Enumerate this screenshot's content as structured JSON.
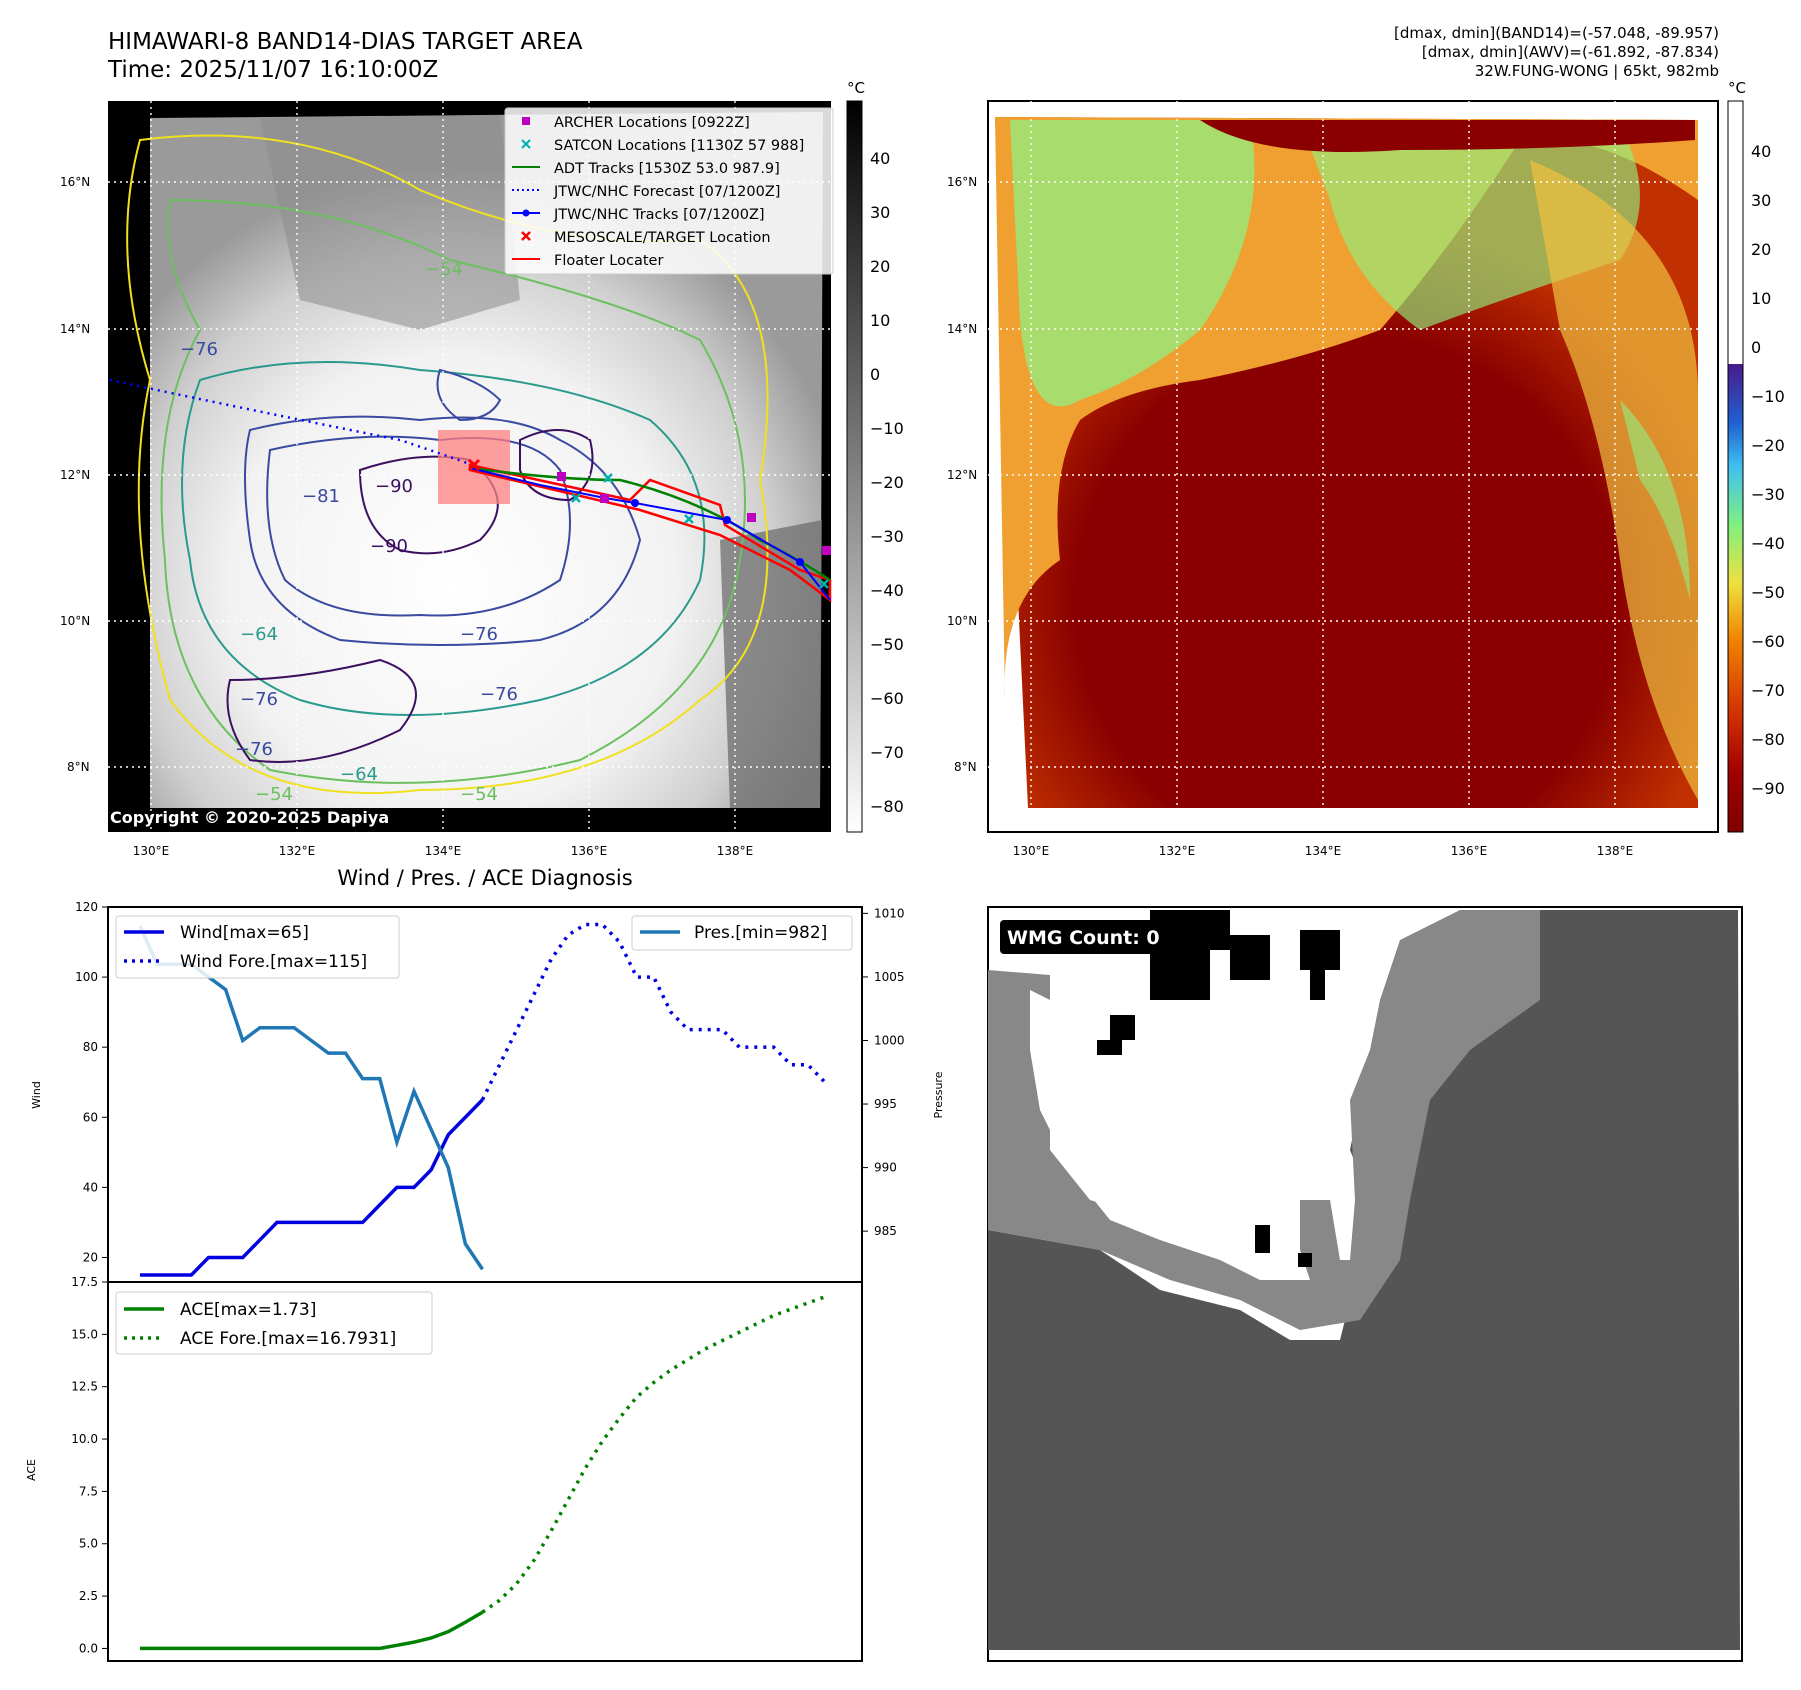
{
  "header": {
    "title": "HIMAWARI-8 BAND14-DIAS TARGET AREA",
    "time": "Time: 2025/11/07 16:10:00Z",
    "dmax_band14": "[dmax, dmin](BAND14)=(-57.048, -89.957)",
    "dmax_awv": "[dmax, dmin](AWV)=(-61.892, -87.834)",
    "storm": "32W.FUNG-WONG | 65kt, 982mb"
  },
  "map_axes": {
    "lat_labels": [
      "16°N",
      "14°N",
      "12°N",
      "10°N",
      "8°N"
    ],
    "lon_labels": [
      "130°E",
      "132°E",
      "134°E",
      "136°E",
      "138°E"
    ]
  },
  "ir_panel": {
    "colorbar_unit": "°C",
    "colorbar_ticks": [
      "40",
      "30",
      "20",
      "10",
      "0",
      "−10",
      "−20",
      "−30",
      "−40",
      "−50",
      "−60",
      "−70",
      "−80"
    ],
    "contour_labels": [
      "−90",
      "−90",
      "−81",
      "−76",
      "−76",
      "−76",
      "−76",
      "−64",
      "−64",
      "−54",
      "−54",
      "−54",
      "−76"
    ],
    "copyright": "Copyright © 2020-2025 Dapiya",
    "legend": [
      {
        "label": "ARCHER Locations [0922Z]",
        "color": "#c000c0"
      },
      {
        "label": "SATCON Locations [1130Z 57 988]",
        "color": "#00b0b0"
      },
      {
        "label": "ADT Tracks [1530Z 53.0 987.9]",
        "color": "#008000"
      },
      {
        "label": "JTWC/NHC Forecast [07/1200Z]",
        "color": "#0000ff"
      },
      {
        "label": "JTWC/NHC Tracks [07/1200Z]",
        "color": "#0000ff"
      },
      {
        "label": "MESOSCALE/TARGET Location",
        "color": "#ff0000"
      },
      {
        "label": "Floater Locater",
        "color": "#ff0000"
      }
    ]
  },
  "awv_panel": {
    "colorbar_unit": "°C",
    "colorbar_ticks": [
      "40",
      "30",
      "20",
      "10",
      "0",
      "−10",
      "−20",
      "−30",
      "−40",
      "−50",
      "−60",
      "−70",
      "−80",
      "−90"
    ]
  },
  "wmg_panel": {
    "label": "WMG Count: 0"
  },
  "chart_data": [
    {
      "type": "line",
      "title": "Wind / Pres. / ACE Diagnosis",
      "ylabel": "Wind",
      "y2label": "Pressure",
      "ylim": [
        13,
        120
      ],
      "y2lim": [
        981,
        1010.5
      ],
      "yticks": [
        20,
        40,
        60,
        80,
        100,
        120
      ],
      "y2ticks": [
        985,
        990,
        995,
        1000,
        1005,
        1010
      ],
      "series": [
        {
          "name": "Wind[max=65]",
          "axis": "left",
          "style": "solid",
          "color": "#0000e0",
          "x": [
            0,
            1,
            2,
            3,
            4,
            5,
            6,
            7,
            8,
            9,
            10,
            11,
            12,
            13,
            14,
            15,
            16,
            17,
            18,
            19,
            20
          ],
          "values": [
            15,
            15,
            15,
            15,
            20,
            20,
            20,
            25,
            30,
            30,
            30,
            30,
            30,
            30,
            35,
            40,
            40,
            45,
            55,
            60,
            65
          ]
        },
        {
          "name": "Wind Fore.[max=115]",
          "axis": "left",
          "style": "dotted",
          "color": "#0000e0",
          "x": [
            20,
            21,
            22,
            23,
            24,
            25,
            26,
            27,
            28,
            29,
            30,
            31,
            32,
            33,
            34,
            35,
            36,
            37,
            38,
            39,
            40
          ],
          "values": [
            65,
            75,
            85,
            95,
            105,
            112,
            115,
            115,
            110,
            100,
            100,
            90,
            85,
            85,
            85,
            80,
            80,
            80,
            75,
            75,
            70
          ]
        },
        {
          "name": "Pres.[min=982]",
          "axis": "right",
          "style": "solid",
          "color": "#1f77b4",
          "x": [
            0,
            1,
            2,
            3,
            4,
            5,
            6,
            7,
            8,
            9,
            10,
            11,
            12,
            13,
            14,
            15,
            16,
            17,
            18,
            19,
            20
          ],
          "values": [
            1009,
            1006,
            1006,
            1006,
            1005,
            1004,
            1000,
            1001,
            1001,
            1001,
            1000,
            999,
            999,
            997,
            997,
            992,
            996,
            993,
            990,
            984,
            982
          ]
        }
      ],
      "legend": [
        "Wind[max=65]",
        "Wind Fore.[max=115]",
        "Pres.[min=982]"
      ]
    },
    {
      "type": "line",
      "ylabel": "ACE",
      "ylim": [
        -0.6,
        17.5
      ],
      "yticks": [
        "0.0",
        "2.5",
        "5.0",
        "7.5",
        "10.0",
        "12.5",
        "15.0",
        "17.5"
      ],
      "series": [
        {
          "name": "ACE[max=1.73]",
          "style": "solid",
          "color": "#008000",
          "x": [
            0,
            2,
            4,
            6,
            8,
            10,
            12,
            14,
            15,
            16,
            17,
            18,
            19,
            20
          ],
          "values": [
            0,
            0,
            0,
            0,
            0,
            0,
            0,
            0,
            0.15,
            0.3,
            0.5,
            0.8,
            1.25,
            1.73
          ]
        },
        {
          "name": "ACE Fore.[max=16.7931]",
          "style": "dotted",
          "color": "#008000",
          "x": [
            20,
            21,
            22,
            23,
            24,
            25,
            26,
            27,
            28,
            29,
            30,
            31,
            32,
            33,
            34,
            35,
            36,
            37,
            38,
            39,
            40
          ],
          "values": [
            1.73,
            2.3,
            3.1,
            4.2,
            5.6,
            7.1,
            8.6,
            9.9,
            11.0,
            12.0,
            12.7,
            13.3,
            13.8,
            14.3,
            14.7,
            15.1,
            15.5,
            15.9,
            16.2,
            16.5,
            16.79
          ]
        }
      ],
      "legend": [
        "ACE[max=1.73]",
        "ACE Fore.[max=16.7931]"
      ]
    }
  ]
}
